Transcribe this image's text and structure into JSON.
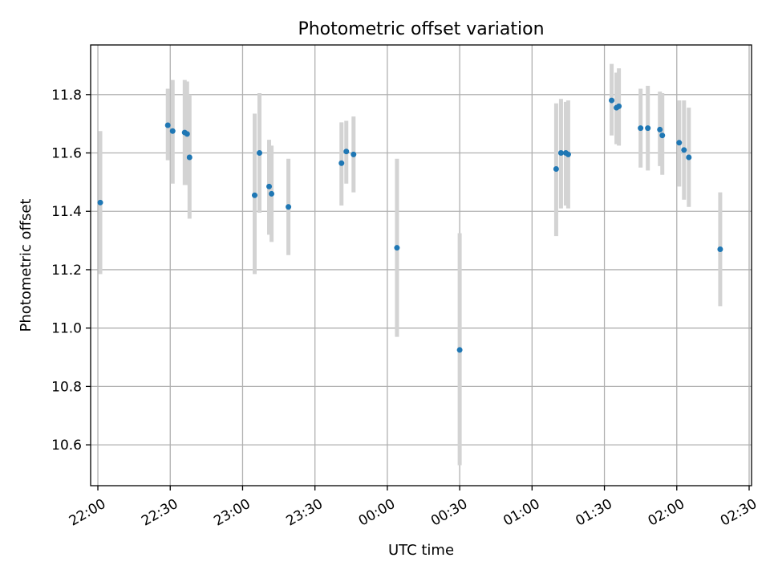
{
  "chart_data": {
    "type": "scatter",
    "title": "Photometric offset variation",
    "xlabel": "UTC time",
    "ylabel": "Photometric offset",
    "grid": true,
    "colors": {
      "point": "#1f77b4",
      "errorbar": "#d3d3d3"
    },
    "xlim": [
      "21:57",
      "02:31"
    ],
    "ylim": [
      10.46,
      11.97
    ],
    "xticks": [
      "22:00",
      "22:30",
      "23:00",
      "23:30",
      "00:00",
      "00:30",
      "01:00",
      "01:30",
      "02:00",
      "02:30"
    ],
    "yticks": [
      10.6,
      10.8,
      11.0,
      11.2,
      11.4,
      11.6,
      11.8
    ],
    "series": [
      {
        "points": [
          {
            "x": "22:01",
            "y": 11.43,
            "ylo": 11.185,
            "yhi": 11.675
          },
          {
            "x": "22:29",
            "y": 11.695,
            "ylo": 11.575,
            "yhi": 11.82
          },
          {
            "x": "22:31",
            "y": 11.675,
            "ylo": 11.495,
            "yhi": 11.85
          },
          {
            "x": "22:36",
            "y": 11.67,
            "ylo": 11.49,
            "yhi": 11.85
          },
          {
            "x": "22:37",
            "y": 11.665,
            "ylo": 11.49,
            "yhi": 11.845
          },
          {
            "x": "22:38",
            "y": 11.585,
            "ylo": 11.375,
            "yhi": 11.8
          },
          {
            "x": "23:05",
            "y": 11.455,
            "ylo": 11.185,
            "yhi": 11.735
          },
          {
            "x": "23:07",
            "y": 11.6,
            "ylo": 11.395,
            "yhi": 11.805
          },
          {
            "x": "23:11",
            "y": 11.485,
            "ylo": 11.32,
            "yhi": 11.645
          },
          {
            "x": "23:12",
            "y": 11.46,
            "ylo": 11.295,
            "yhi": 11.625
          },
          {
            "x": "23:19",
            "y": 11.415,
            "ylo": 11.25,
            "yhi": 11.58
          },
          {
            "x": "23:41",
            "y": 11.565,
            "ylo": 11.42,
            "yhi": 11.705
          },
          {
            "x": "23:43",
            "y": 11.605,
            "ylo": 11.495,
            "yhi": 11.71
          },
          {
            "x": "23:46",
            "y": 11.595,
            "ylo": 11.465,
            "yhi": 11.725
          },
          {
            "x": "00:04",
            "y": 11.275,
            "ylo": 10.97,
            "yhi": 11.58
          },
          {
            "x": "00:30",
            "y": 10.925,
            "ylo": 10.53,
            "yhi": 11.325
          },
          {
            "x": "01:10",
            "y": 11.545,
            "ylo": 11.315,
            "yhi": 11.77
          },
          {
            "x": "01:12",
            "y": 11.6,
            "ylo": 11.41,
            "yhi": 11.785
          },
          {
            "x": "01:14",
            "y": 11.6,
            "ylo": 11.42,
            "yhi": 11.775
          },
          {
            "x": "01:15",
            "y": 11.595,
            "ylo": 11.41,
            "yhi": 11.78
          },
          {
            "x": "01:33",
            "y": 11.78,
            "ylo": 11.66,
            "yhi": 11.905
          },
          {
            "x": "01:35",
            "y": 11.755,
            "ylo": 11.63,
            "yhi": 11.875
          },
          {
            "x": "01:36",
            "y": 11.76,
            "ylo": 11.625,
            "yhi": 11.89
          },
          {
            "x": "01:45",
            "y": 11.685,
            "ylo": 11.55,
            "yhi": 11.82
          },
          {
            "x": "01:48",
            "y": 11.685,
            "ylo": 11.54,
            "yhi": 11.83
          },
          {
            "x": "01:53",
            "y": 11.68,
            "ylo": 11.555,
            "yhi": 11.81
          },
          {
            "x": "01:54",
            "y": 11.66,
            "ylo": 11.525,
            "yhi": 11.805
          },
          {
            "x": "02:01",
            "y": 11.635,
            "ylo": 11.485,
            "yhi": 11.78
          },
          {
            "x": "02:03",
            "y": 11.61,
            "ylo": 11.44,
            "yhi": 11.78
          },
          {
            "x": "02:05",
            "y": 11.585,
            "ylo": 11.415,
            "yhi": 11.755
          },
          {
            "x": "02:18",
            "y": 11.27,
            "ylo": 11.075,
            "yhi": 11.465
          }
        ]
      }
    ]
  }
}
